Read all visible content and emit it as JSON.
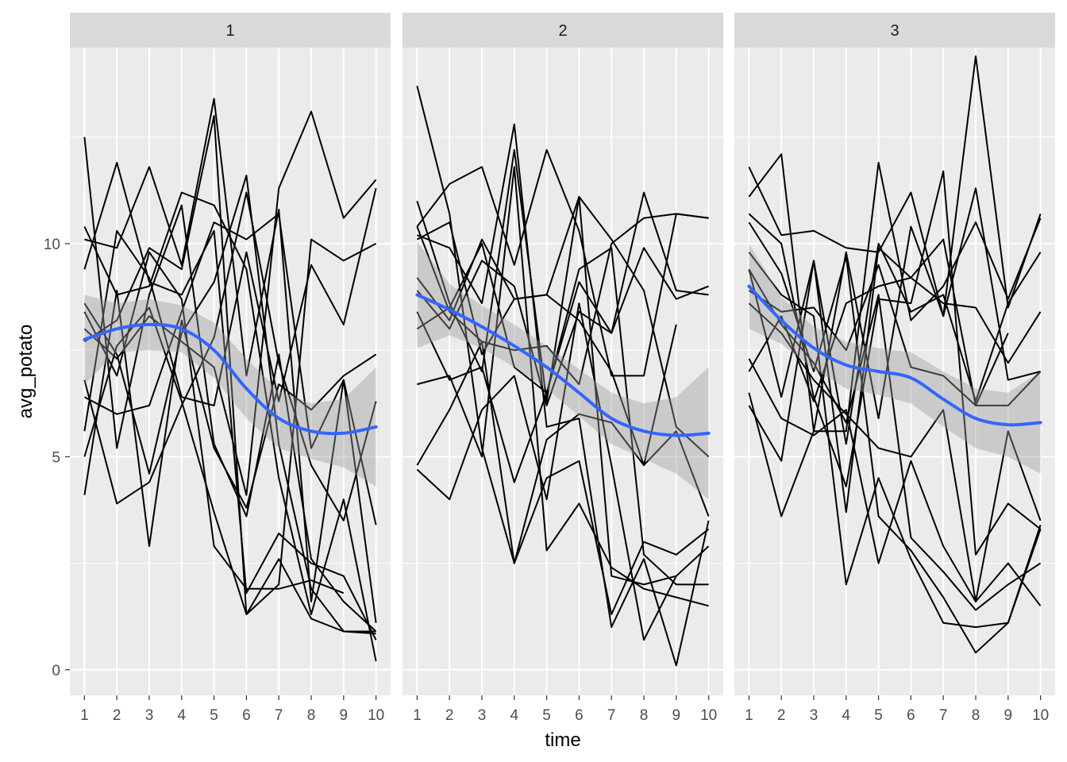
{
  "chart_data": {
    "type": "line",
    "xlabel": "time",
    "ylabel": "avg_potato",
    "x_ticks": [
      1,
      2,
      3,
      4,
      5,
      6,
      7,
      8,
      9,
      10
    ],
    "y_ticks": [
      0,
      5,
      10
    ],
    "xlim": [
      0.55,
      10.45
    ],
    "ylim": [
      -0.6,
      14.6
    ],
    "grid": true,
    "colors": {
      "panel_bg": "#ebebeb",
      "strip_bg": "#d9d9d9",
      "grid": "#ffffff",
      "line": "#000000",
      "smooth": "#3366ff",
      "ribbon": "#999999"
    },
    "facets": [
      {
        "label": "1",
        "series": [
          [
            12.5,
            5.2,
            8.8,
            10.9,
            5.3,
            3.6,
            7.4,
            2.6,
            1.6,
            0.9
          ],
          [
            10.1,
            9.9,
            11.8,
            9.5,
            13.4,
            6.9,
            10.8,
            1.6,
            6.8,
            1.1
          ],
          [
            9.4,
            11.9,
            9.1,
            8.8,
            10.3,
            1.8,
            3.2,
            2.5,
            2.2,
            0.7
          ],
          [
            10.4,
            8.8,
            9.0,
            11.2,
            10.9,
            9.4,
            4.5,
            1.3,
            4.0,
            0.2
          ],
          [
            8.6,
            7.4,
            4.6,
            7.9,
            9.1,
            11.6,
            5.3,
            1.9,
            0.9,
            0.9
          ],
          [
            8.4,
            6.9,
            9.8,
            8.7,
            2.9,
            1.9,
            1.9,
            2.1,
            1.8,
            null
          ],
          [
            6.4,
            6.0,
            6.2,
            8.4,
            10.5,
            10.1,
            10.7,
            5.2,
            6.8,
            3.4
          ],
          [
            5.0,
            7.6,
            8.5,
            6.3,
            3.7,
            1.3,
            2.6,
            1.2,
            0.9,
            0.85
          ],
          [
            6.8,
            3.9,
            4.4,
            6.2,
            7.8,
            11.2,
            7.2,
            4.8,
            3.5,
            6.3
          ],
          [
            4.1,
            8.9,
            2.9,
            8.2,
            5.2,
            3.8,
            6.7,
            6.1,
            6.9,
            7.4
          ],
          [
            5.6,
            10.3,
            9.2,
            6.4,
            6.2,
            9.8,
            6.3,
            9.5,
            8.1,
            11.3
          ],
          [
            7.7,
            8.2,
            9.9,
            9.4,
            13.0,
            1.3,
            2.0,
            10.1,
            9.6,
            10.0
          ],
          [
            8.0,
            7.3,
            8.3,
            7.7,
            7.1,
            4.1,
            11.3,
            13.1,
            10.6,
            11.5
          ]
        ],
        "smooth": [
          7.75,
          8.0,
          8.1,
          8.0,
          7.5,
          6.6,
          5.9,
          5.6,
          5.55,
          5.7
        ],
        "ribbon_lower": [
          6.7,
          7.45,
          7.5,
          7.45,
          6.85,
          5.9,
          5.2,
          4.95,
          4.75,
          4.3
        ],
        "ribbon_upper": [
          8.8,
          8.6,
          8.7,
          8.55,
          8.15,
          7.3,
          6.55,
          6.25,
          6.35,
          7.1
        ]
      },
      {
        "label": "2",
        "series": [
          [
            13.7,
            10.7,
            5.2,
            2.5,
            4.5,
            4.9,
            1.3,
            3.0,
            2.7,
            3.3
          ],
          [
            11.0,
            8.6,
            7.0,
            12.2,
            6.3,
            11.1,
            10.1,
            8.9,
            5.7,
            5.0
          ],
          [
            10.4,
            11.4,
            11.8,
            9.5,
            12.2,
            10.3,
            6.9,
            6.9,
            10.7,
            10.6
          ],
          [
            10.2,
            9.9,
            8.6,
            12.8,
            5.7,
            5.9,
            1.0,
            2.6,
            0.1,
            3.5
          ],
          [
            10.1,
            10.5,
            7.4,
            8.7,
            8.8,
            11.1,
            2.2,
            2.0,
            2.2,
            2.9
          ],
          [
            8.0,
            8.5,
            10.0,
            7.1,
            6.5,
            9.4,
            9.9,
            2.7,
            2.0,
            2.0
          ],
          [
            6.7,
            6.9,
            5.0,
            11.8,
            2.8,
            3.9,
            2.4,
            1.9,
            1.7,
            1.5
          ],
          [
            4.7,
            4.0,
            6.1,
            6.9,
            4.0,
            8.6,
            4.8,
            0.7,
            2.2,
            null
          ],
          [
            4.8,
            6.1,
            7.7,
            2.5,
            5.4,
            6.0,
            5.8,
            4.8,
            5.6,
            3.6
          ],
          [
            8.4,
            6.8,
            7.1,
            4.4,
            6.5,
            9.1,
            7.9,
            11.2,
            8.9,
            8.8
          ],
          [
            9.2,
            8.2,
            10.1,
            8.7,
            8.8,
            8.2,
            7.0,
            4.8,
            8.1,
            null
          ],
          [
            10.4,
            8.4,
            7.7,
            7.5,
            7.6,
            6.7,
            10.0,
            10.6,
            10.7,
            10.6
          ],
          [
            8.9,
            8.0,
            9.6,
            9.0,
            6.2,
            8.4,
            7.9,
            9.9,
            8.7,
            9.0
          ]
        ],
        "smooth": [
          8.8,
          8.45,
          8.05,
          7.6,
          7.1,
          6.5,
          5.9,
          5.6,
          5.5,
          5.55
        ],
        "ribbon_lower": [
          7.55,
          7.85,
          7.55,
          7.1,
          6.6,
          5.95,
          5.3,
          4.95,
          4.6,
          4.0
        ],
        "ribbon_upper": [
          10.05,
          9.05,
          8.55,
          8.1,
          7.6,
          7.05,
          6.5,
          6.25,
          6.4,
          7.1
        ]
      },
      {
        "label": "3",
        "series": [
          [
            11.8,
            10.2,
            10.3,
            9.9,
            9.8,
            11.2,
            8.3,
            14.4,
            8.5,
            10.7
          ],
          [
            11.1,
            12.1,
            5.6,
            5.6,
            11.9,
            8.2,
            9.0,
            10.5,
            8.7,
            10.6
          ],
          [
            10.7,
            10.0,
            6.4,
            4.3,
            8.7,
            8.6,
            11.7,
            2.7,
            3.9,
            3.3
          ],
          [
            10.5,
            9.3,
            7.0,
            9.7,
            3.6,
            2.8,
            1.7,
            0.4,
            1.1,
            3.4
          ],
          [
            9.8,
            8.8,
            8.3,
            2.0,
            4.5,
            2.6,
            1.1,
            1.0,
            1.1,
            3.3
          ],
          [
            9.4,
            8.1,
            7.2,
            5.8,
            8.8,
            3.1,
            2.3,
            1.4,
            2.0,
            2.5
          ],
          [
            8.6,
            7.9,
            6.8,
            6.0,
            5.2,
            5.0,
            6.1,
            1.6,
            2.5,
            1.5
          ],
          [
            7.3,
            5.9,
            5.5,
            6.1,
            2.5,
            4.9,
            2.9,
            1.6,
            5.6,
            3.5
          ],
          [
            6.5,
            3.6,
            5.6,
            9.8,
            5.9,
            10.4,
            8.3,
            11.3,
            6.8,
            7.0
          ],
          [
            6.2,
            4.9,
            9.6,
            3.7,
            9.9,
            9.2,
            10.1,
            6.2,
            6.2,
            7.0
          ],
          [
            8.9,
            8.4,
            8.5,
            7.5,
            9.5,
            7.1,
            6.9,
            6.2,
            7.9,
            null
          ],
          [
            7.0,
            8.3,
            6.3,
            8.6,
            9.0,
            9.2,
            8.6,
            8.5,
            7.2,
            8.4
          ],
          [
            9.4,
            6.4,
            9.6,
            5.3,
            10.0,
            8.4,
            8.8,
            6.3,
            8.6,
            9.8
          ]
        ],
        "smooth": [
          9.0,
          8.2,
          7.55,
          7.15,
          7.0,
          6.85,
          6.35,
          5.9,
          5.75,
          5.8
        ],
        "ribbon_lower": [
          8.0,
          7.65,
          7.05,
          6.6,
          6.45,
          6.25,
          5.7,
          5.2,
          5.0,
          4.6
        ],
        "ribbon_upper": [
          10.0,
          8.75,
          8.05,
          7.7,
          7.55,
          7.45,
          7.0,
          6.6,
          6.5,
          7.0
        ]
      }
    ]
  }
}
